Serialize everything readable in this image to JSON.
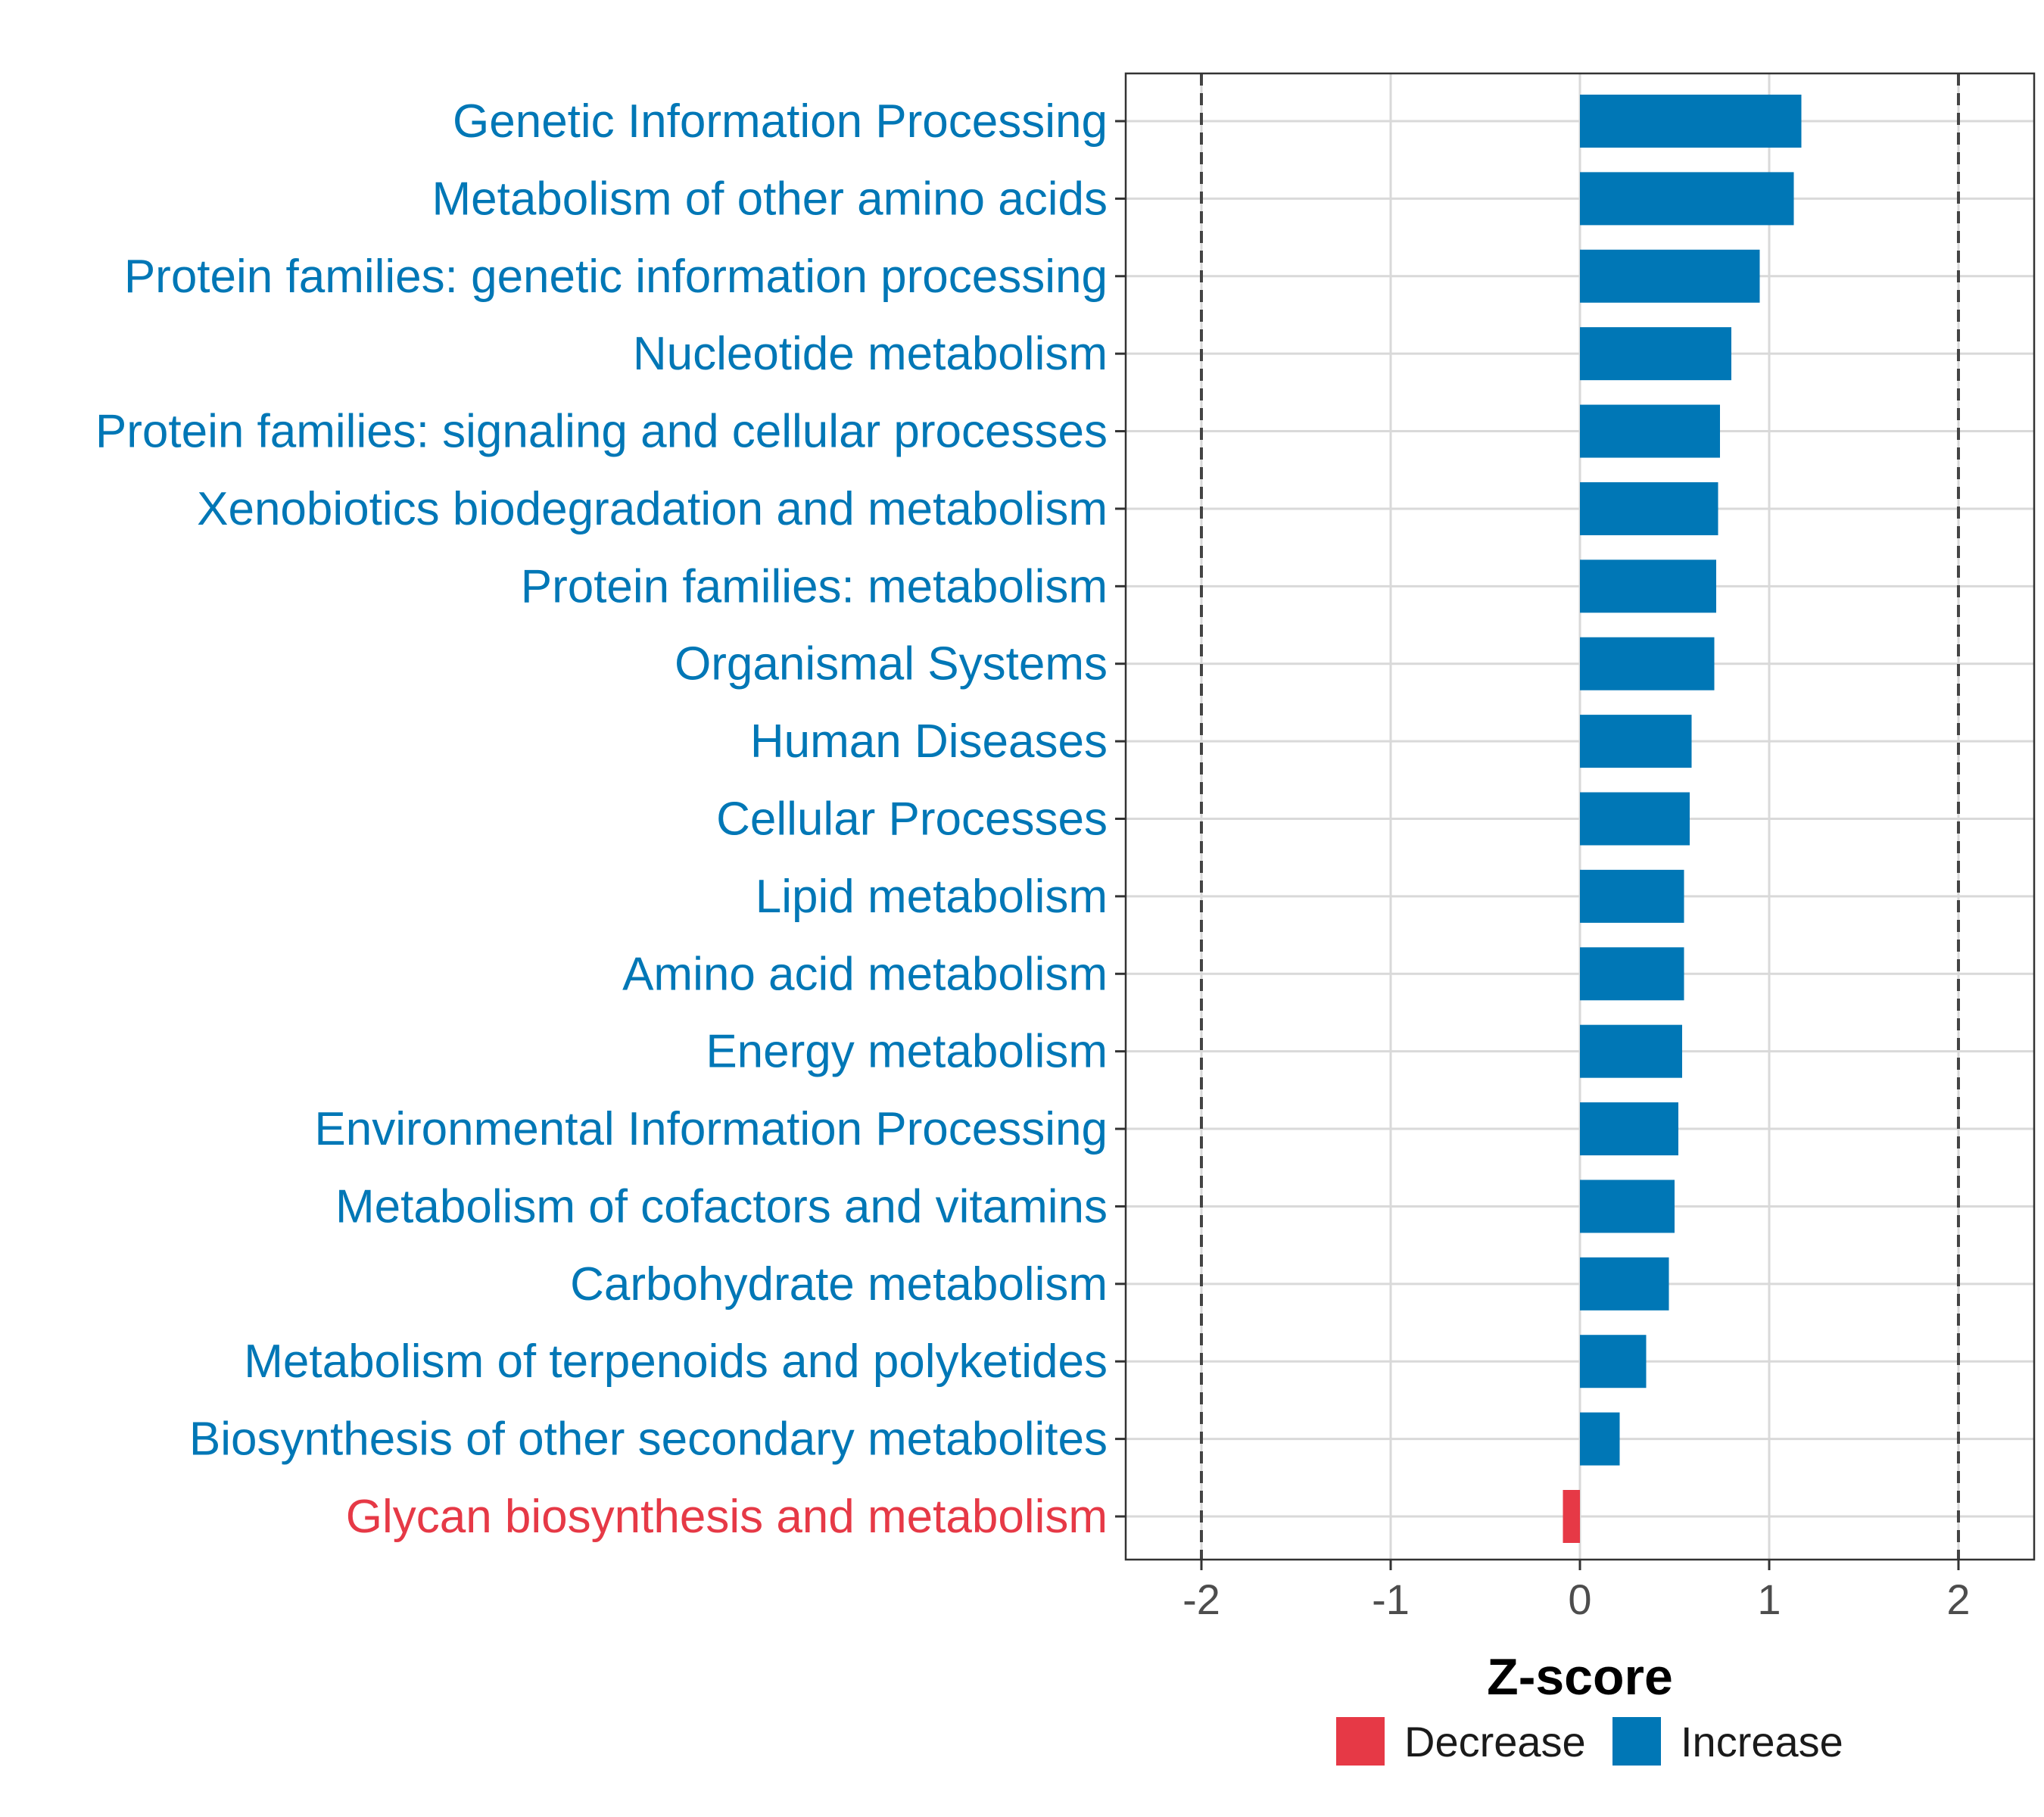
{
  "chart_data": {
    "type": "bar",
    "orientation": "horizontal",
    "xlabel": "Z-score",
    "ylabel": "",
    "xlim": [
      -2.4,
      2.4
    ],
    "x_ticks": [
      -2,
      -1,
      0,
      1,
      2
    ],
    "x_tick_labels": [
      "-2",
      "-1",
      "0",
      "1",
      "2"
    ],
    "reference_lines": [
      -2,
      2
    ],
    "grid": true,
    "categories": [
      "Genetic Information Processing",
      "Metabolism of other amino acids",
      "Protein families: genetic information processing",
      "Nucleotide metabolism",
      "Protein families: signaling and cellular processes",
      "Xenobiotics biodegradation and metabolism",
      "Protein families: metabolism",
      "Organismal Systems",
      "Human Diseases",
      "Cellular Processes",
      "Lipid metabolism",
      "Amino acid metabolism",
      "Energy metabolism",
      "Environmental Information Processing",
      "Metabolism of cofactors and vitamins",
      "Carbohydrate metabolism",
      "Metabolism of terpenoids and polyketides",
      "Biosynthesis of other secondary metabolites",
      "Glycan biosynthesis and metabolism"
    ],
    "values": [
      1.17,
      1.13,
      0.95,
      0.8,
      0.74,
      0.73,
      0.72,
      0.71,
      0.59,
      0.58,
      0.55,
      0.55,
      0.54,
      0.52,
      0.5,
      0.47,
      0.35,
      0.21,
      -0.09
    ],
    "groups": [
      "Increase",
      "Increase",
      "Increase",
      "Increase",
      "Increase",
      "Increase",
      "Increase",
      "Increase",
      "Increase",
      "Increase",
      "Increase",
      "Increase",
      "Increase",
      "Increase",
      "Increase",
      "Increase",
      "Increase",
      "Increase",
      "Decrease"
    ],
    "legend": {
      "position": "bottom",
      "entries": [
        {
          "label": "Decrease",
          "color": "#e63946"
        },
        {
          "label": "Increase",
          "color": "#0077b6"
        }
      ]
    },
    "colors": {
      "Increase": "#0077b6",
      "Decrease": "#e63946"
    }
  }
}
